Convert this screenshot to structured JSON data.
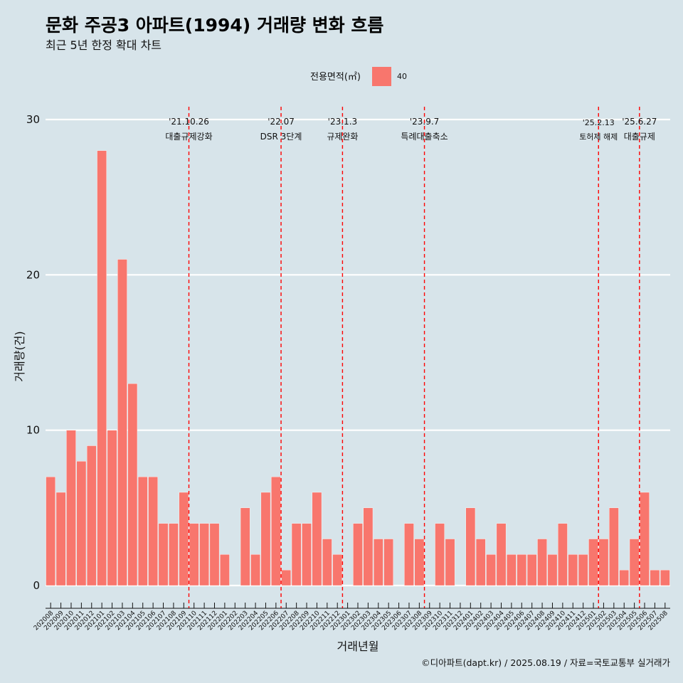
{
  "title": "문화 주공3 아파트(1994) 거래량 변화 흐름",
  "subtitle": "최근 5년 한정 확대 차트",
  "caption": "©디아파트(dapt.kr) / 2025.08.19 / 자료=국토교통부 실거래가",
  "legend": {
    "title": "전용면적(㎡)",
    "items": [
      {
        "label": "40",
        "color": "#f8766d"
      }
    ]
  },
  "chart_data": {
    "type": "bar",
    "xlabel": "거래년월",
    "ylabel": "거래량(건)",
    "ylim": [
      0,
      30
    ],
    "yticks": [
      0,
      10,
      20,
      30
    ],
    "grid": true,
    "legend_position": "top",
    "categories": [
      "202008",
      "202009",
      "202010",
      "202011",
      "202012",
      "202101",
      "202102",
      "202103",
      "202104",
      "202105",
      "202106",
      "202107",
      "202108",
      "202109",
      "202110",
      "202111",
      "202112",
      "202201",
      "202202",
      "202203",
      "202204",
      "202205",
      "202206",
      "202207",
      "202208",
      "202209",
      "202210",
      "202211",
      "202212",
      "202301",
      "202302",
      "202303",
      "202304",
      "202305",
      "202306",
      "202307",
      "202308",
      "202309",
      "202310",
      "202311",
      "202312",
      "202401",
      "202402",
      "202403",
      "202404",
      "202405",
      "202406",
      "202407",
      "202408",
      "202409",
      "202410",
      "202411",
      "202412",
      "202501",
      "202502",
      "202503",
      "202504",
      "202505",
      "202506",
      "202507",
      "202508"
    ],
    "series": [
      {
        "color": "#f8766d",
        "values": [
          7,
          6,
          10,
          8,
          9,
          28,
          10,
          21,
          13,
          7,
          7,
          4,
          4,
          6,
          4,
          4,
          4,
          2,
          0,
          5,
          2,
          6,
          7,
          1,
          4,
          4,
          6,
          3,
          2,
          0,
          4,
          5,
          3,
          3,
          0,
          4,
          3,
          0,
          4,
          3,
          0,
          5,
          3,
          2,
          4,
          2,
          2,
          2,
          3,
          2,
          4,
          2,
          2,
          3,
          3,
          5,
          1,
          3,
          6,
          1,
          1
        ]
      }
    ],
    "annotations": [
      {
        "category": "202110",
        "date": "'21.10.26",
        "label": "대출규제강화"
      },
      {
        "category": "202207",
        "date": "'22.07",
        "label": "DSR 3단계"
      },
      {
        "category": "202301",
        "date": "'23.1.3",
        "label": "규제완화"
      },
      {
        "category": "202309",
        "date": "'23.9.7",
        "label": "특례대출축소"
      },
      {
        "category": "202502",
        "date": "'25.2.13",
        "label": "토허제 해제"
      },
      {
        "category": "202506",
        "date": "'25.6.27",
        "label": "대출규제"
      }
    ],
    "line_color": "#ff0000"
  }
}
